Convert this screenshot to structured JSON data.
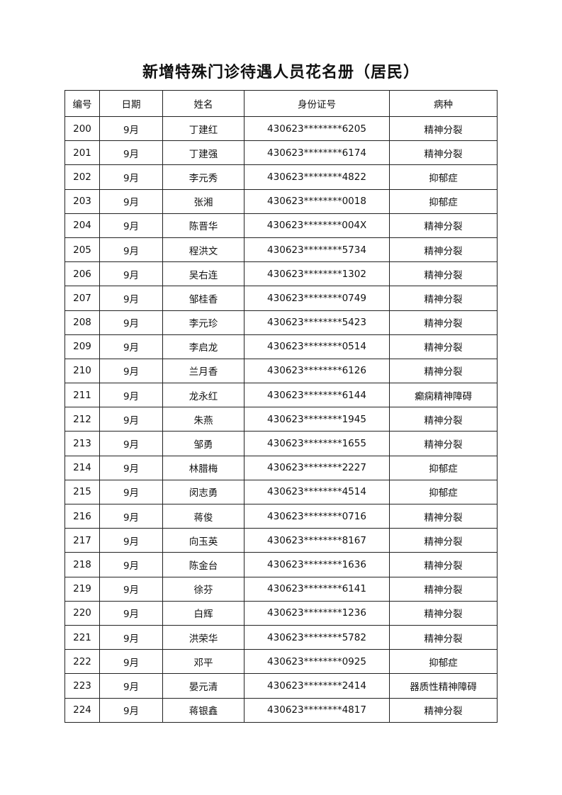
{
  "title": "新增特殊门诊待遇人员花名册（居民）",
  "headers": [
    "编号",
    "日期",
    "姓名",
    "身份证号",
    "病种"
  ],
  "rows": [
    [
      "200",
      "9月",
      "丁建红",
      "430623********6205",
      "精神分裂"
    ],
    [
      "201",
      "9月",
      "丁建强",
      "430623********6174",
      "精神分裂"
    ],
    [
      "202",
      "9月",
      "李元秀",
      "430623********4822",
      "抑郁症"
    ],
    [
      "203",
      "9月",
      "张湘",
      "430623********0018",
      "抑郁症"
    ],
    [
      "204",
      "9月",
      "陈晋华",
      "430623********004X",
      "精神分裂"
    ],
    [
      "205",
      "9月",
      "程洪文",
      "430623********5734",
      "精神分裂"
    ],
    [
      "206",
      "9月",
      "吴右连",
      "430623********1302",
      "精神分裂"
    ],
    [
      "207",
      "9月",
      "邹桂香",
      "430623********0749",
      "精神分裂"
    ],
    [
      "208",
      "9月",
      "李元珍",
      "430623********5423",
      "精神分裂"
    ],
    [
      "209",
      "9月",
      "李启龙",
      "430623********0514",
      "精神分裂"
    ],
    [
      "210",
      "9月",
      "兰月香",
      "430623********6126",
      "精神分裂"
    ],
    [
      "211",
      "9月",
      "龙永红",
      "430623********6144",
      "癫痫精神障碍"
    ],
    [
      "212",
      "9月",
      "朱燕",
      "430623********1945",
      "精神分裂"
    ],
    [
      "213",
      "9月",
      "邹勇",
      "430623********1655",
      "精神分裂"
    ],
    [
      "214",
      "9月",
      "林腊梅",
      "430623********2227",
      "抑郁症"
    ],
    [
      "215",
      "9月",
      "闵志勇",
      "430623********4514",
      "抑郁症"
    ],
    [
      "216",
      "9月",
      "蒋俊",
      "430623********0716",
      "精神分裂"
    ],
    [
      "217",
      "9月",
      "向玉英",
      "430623********8167",
      "精神分裂"
    ],
    [
      "218",
      "9月",
      "陈金台",
      "430623********1636",
      "精神分裂"
    ],
    [
      "219",
      "9月",
      "徐芬",
      "430623********6141",
      "精神分裂"
    ],
    [
      "220",
      "9月",
      "白辉",
      "430623********1236",
      "精神分裂"
    ],
    [
      "221",
      "9月",
      "洪荣华",
      "430623********5782",
      "精神分裂"
    ],
    [
      "222",
      "9月",
      "邓平",
      "430623********0925",
      "抑郁症"
    ],
    [
      "223",
      "9月",
      "晏元清",
      "430623********2414",
      "器质性精神障碍"
    ],
    [
      "224",
      "9月",
      "蒋银鑫",
      "430623********4817",
      "精神分裂"
    ]
  ]
}
